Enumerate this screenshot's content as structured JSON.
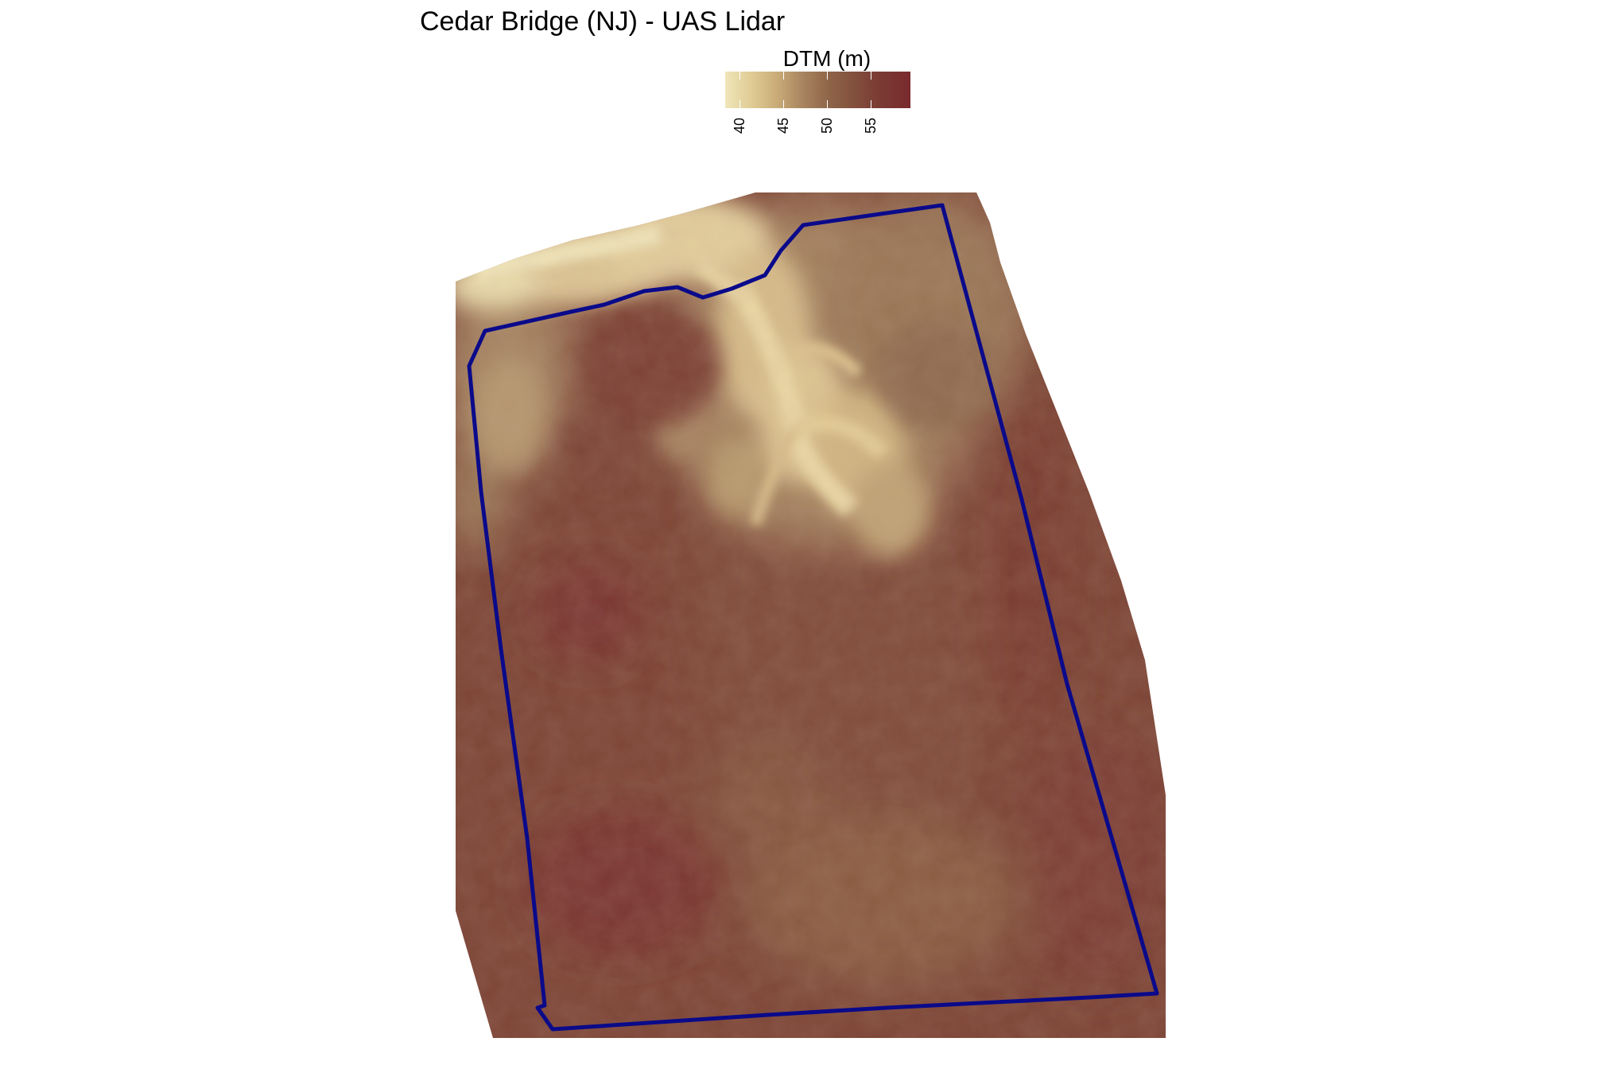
{
  "title": "Cedar Bridge (NJ) - UAS Lidar",
  "legend": {
    "title": "DTM (m)",
    "ticks": [
      "40",
      "45",
      "50",
      "55"
    ],
    "min_value": 38.3,
    "max_value": 59.5,
    "colors": [
      "#efe6b9",
      "#e0cc95",
      "#c9ab78",
      "#a98460",
      "#8e6548",
      "#824f3d",
      "#7a3a33",
      "#7a2a2d"
    ]
  },
  "boundary": {
    "color": "#0a0a8a"
  }
}
